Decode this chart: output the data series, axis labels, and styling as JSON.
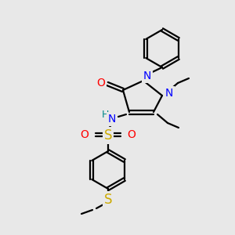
{
  "background_color": "#e8e8e8",
  "bond_color": "#000000",
  "atom_colors": {
    "N": "#0000ff",
    "O": "#ff0000",
    "S": "#ccaa00",
    "H": "#008888",
    "C": "#000000"
  },
  "figsize": [
    3.0,
    3.0
  ],
  "dpi": 100,
  "lw": 1.6,
  "fs": 9.0
}
